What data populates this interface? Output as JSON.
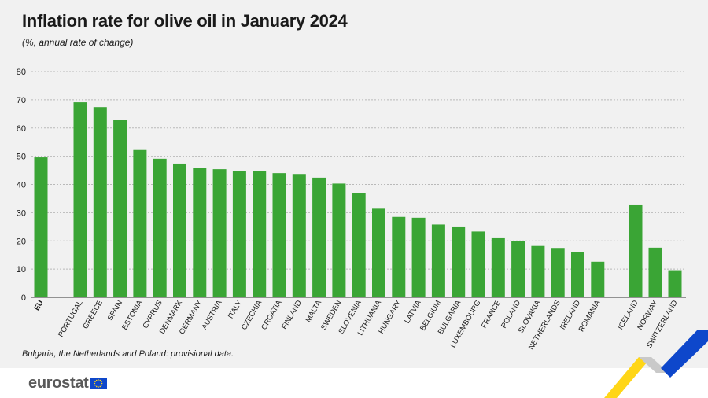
{
  "header": {
    "title": "Inflation rate for olive oil in January 2024",
    "subtitle": "(%, annual rate of change)"
  },
  "footnote": "Bulgaria, the Netherlands and Poland: provisional data.",
  "brand": {
    "name": "eurostat",
    "flag_icon": "eu-flag-icon"
  },
  "colors": {
    "bar": "#3aa535",
    "grid": "#b9b9b9",
    "axis": "#333333",
    "brand_blue": "#0e47cb",
    "brand_yellow": "#ffd617"
  },
  "chart_data": {
    "type": "bar",
    "title": "Inflation rate for olive oil in January 2024",
    "subtitle": "(%, annual rate of change)",
    "ylim": [
      0,
      80
    ],
    "yticks": [
      0,
      10,
      20,
      30,
      40,
      50,
      60,
      70,
      80
    ],
    "grid": true,
    "categories": [
      "EU",
      "PORTUGAL",
      "GREECE",
      "SPAIN",
      "ESTONIA",
      "CYPRUS",
      "DENMARK",
      "GERMANY",
      "AUSTRIA",
      "ITALY",
      "CZECHIA",
      "CROATIA",
      "FINLAND",
      "MALTA",
      "SWEDEN",
      "SLOVENIA",
      "LITHUANIA",
      "HUNGARY",
      "LATVIA",
      "BELGIUM",
      "BULGARIA",
      "LUXEMBOURG",
      "FRANCE",
      "POLAND",
      "SLOVAKIA",
      "NETHERLANDS",
      "IRELAND",
      "ROMANIA",
      "ICELAND",
      "NORWAY",
      "SWITZERLAND"
    ],
    "values": [
      49.6,
      69.1,
      67.4,
      62.9,
      52.2,
      49.1,
      47.4,
      45.9,
      45.4,
      44.8,
      44.6,
      44.0,
      43.7,
      42.4,
      40.3,
      36.8,
      31.4,
      28.5,
      28.2,
      25.8,
      25.1,
      23.3,
      21.2,
      19.8,
      18.2,
      17.5,
      15.9,
      12.6,
      32.9,
      17.6,
      9.6
    ]
  }
}
